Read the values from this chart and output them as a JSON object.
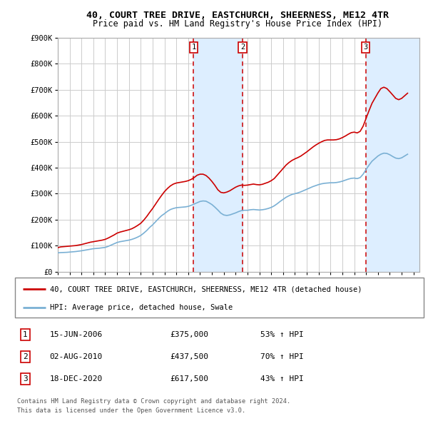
{
  "title": "40, COURT TREE DRIVE, EASTCHURCH, SHEERNESS, ME12 4TR",
  "subtitle": "Price paid vs. HM Land Registry's House Price Index (HPI)",
  "ylim": [
    0,
    900000
  ],
  "yticks": [
    0,
    100000,
    200000,
    300000,
    400000,
    500000,
    600000,
    700000,
    800000,
    900000
  ],
  "ytick_labels": [
    "£0",
    "£100K",
    "£200K",
    "£300K",
    "£400K",
    "£500K",
    "£600K",
    "£700K",
    "£800K",
    "£900K"
  ],
  "xlim_start": 1995.0,
  "xlim_end": 2025.5,
  "background_color": "#ffffff",
  "grid_color": "#cccccc",
  "plot_bg_color": "#ffffff",
  "red_line_color": "#cc0000",
  "blue_line_color": "#7ab0d4",
  "transaction_line_color": "#cc0000",
  "shade_color": "#ddeeff",
  "legend_label_red": "40, COURT TREE DRIVE, EASTCHURCH, SHEERNESS, ME12 4TR (detached house)",
  "legend_label_blue": "HPI: Average price, detached house, Swale",
  "transactions": [
    {
      "num": 1,
      "date": "15-JUN-2006",
      "price": "£375,000",
      "pct": "53% ↑ HPI",
      "x_year": 2006.46
    },
    {
      "num": 2,
      "date": "02-AUG-2010",
      "price": "£437,500",
      "pct": "70% ↑ HPI",
      "x_year": 2010.58
    },
    {
      "num": 3,
      "date": "18-DEC-2020",
      "price": "£617,500",
      "pct": "43% ↑ HPI",
      "x_year": 2020.96
    }
  ],
  "footer_line1": "Contains HM Land Registry data © Crown copyright and database right 2024.",
  "footer_line2": "This data is licensed under the Open Government Licence v3.0.",
  "hpi_data": {
    "years": [
      1995.0,
      1995.25,
      1995.5,
      1995.75,
      1996.0,
      1996.25,
      1996.5,
      1996.75,
      1997.0,
      1997.25,
      1997.5,
      1997.75,
      1998.0,
      1998.25,
      1998.5,
      1998.75,
      1999.0,
      1999.25,
      1999.5,
      1999.75,
      2000.0,
      2000.25,
      2000.5,
      2000.75,
      2001.0,
      2001.25,
      2001.5,
      2001.75,
      2002.0,
      2002.25,
      2002.5,
      2002.75,
      2003.0,
      2003.25,
      2003.5,
      2003.75,
      2004.0,
      2004.25,
      2004.5,
      2004.75,
      2005.0,
      2005.25,
      2005.5,
      2005.75,
      2006.0,
      2006.25,
      2006.5,
      2006.75,
      2007.0,
      2007.25,
      2007.5,
      2007.75,
      2008.0,
      2008.25,
      2008.5,
      2008.75,
      2009.0,
      2009.25,
      2009.5,
      2009.75,
      2010.0,
      2010.25,
      2010.5,
      2010.75,
      2011.0,
      2011.25,
      2011.5,
      2011.75,
      2012.0,
      2012.25,
      2012.5,
      2012.75,
      2013.0,
      2013.25,
      2013.5,
      2013.75,
      2014.0,
      2014.25,
      2014.5,
      2014.75,
      2015.0,
      2015.25,
      2015.5,
      2015.75,
      2016.0,
      2016.25,
      2016.5,
      2016.75,
      2017.0,
      2017.25,
      2017.5,
      2017.75,
      2018.0,
      2018.25,
      2018.5,
      2018.75,
      2019.0,
      2019.25,
      2019.5,
      2019.75,
      2020.0,
      2020.25,
      2020.5,
      2020.75,
      2021.0,
      2021.25,
      2021.5,
      2021.75,
      2022.0,
      2022.25,
      2022.5,
      2022.75,
      2023.0,
      2023.25,
      2023.5,
      2023.75,
      2024.0,
      2024.25,
      2024.5
    ],
    "values": [
      72000,
      73000,
      73500,
      74000,
      75000,
      76000,
      77000,
      78500,
      80000,
      82000,
      84000,
      86000,
      88000,
      89000,
      90000,
      91500,
      93000,
      97000,
      102000,
      107000,
      112000,
      115000,
      117000,
      119000,
      121000,
      124000,
      128000,
      133000,
      139000,
      148000,
      158000,
      170000,
      180000,
      192000,
      204000,
      215000,
      223000,
      232000,
      239000,
      243000,
      246000,
      247000,
      248000,
      249000,
      251000,
      255000,
      260000,
      265000,
      270000,
      272000,
      271000,
      265000,
      258000,
      248000,
      237000,
      225000,
      218000,
      216000,
      218000,
      222000,
      226000,
      231000,
      235000,
      236000,
      236000,
      238000,
      239000,
      238000,
      237000,
      238000,
      240000,
      243000,
      247000,
      253000,
      261000,
      270000,
      278000,
      286000,
      292000,
      297000,
      300000,
      303000,
      307000,
      312000,
      317000,
      322000,
      327000,
      331000,
      335000,
      338000,
      340000,
      341000,
      342000,
      342000,
      343000,
      345000,
      348000,
      352000,
      356000,
      359000,
      360000,
      358000,
      362000,
      375000,
      393000,
      410000,
      425000,
      435000,
      445000,
      452000,
      456000,
      455000,
      450000,
      443000,
      437000,
      435000,
      438000,
      445000,
      452000
    ]
  },
  "house_data": {
    "years": [
      1995.0,
      1995.25,
      1995.5,
      1995.75,
      1996.0,
      1996.25,
      1996.5,
      1996.75,
      1997.0,
      1997.25,
      1997.5,
      1997.75,
      1998.0,
      1998.25,
      1998.5,
      1998.75,
      1999.0,
      1999.25,
      1999.5,
      1999.75,
      2000.0,
      2000.25,
      2000.5,
      2000.75,
      2001.0,
      2001.25,
      2001.5,
      2001.75,
      2002.0,
      2002.25,
      2002.5,
      2002.75,
      2003.0,
      2003.25,
      2003.5,
      2003.75,
      2004.0,
      2004.25,
      2004.5,
      2004.75,
      2005.0,
      2005.25,
      2005.5,
      2005.75,
      2006.0,
      2006.25,
      2006.5,
      2006.75,
      2007.0,
      2007.25,
      2007.5,
      2007.75,
      2008.0,
      2008.25,
      2008.5,
      2008.75,
      2009.0,
      2009.25,
      2009.5,
      2009.75,
      2010.0,
      2010.25,
      2010.5,
      2010.75,
      2011.0,
      2011.25,
      2011.5,
      2011.75,
      2012.0,
      2012.25,
      2012.5,
      2012.75,
      2013.0,
      2013.25,
      2013.5,
      2013.75,
      2014.0,
      2014.25,
      2014.5,
      2014.75,
      2015.0,
      2015.25,
      2015.5,
      2015.75,
      2016.0,
      2016.25,
      2016.5,
      2016.75,
      2017.0,
      2017.25,
      2017.5,
      2017.75,
      2018.0,
      2018.25,
      2018.5,
      2018.75,
      2019.0,
      2019.25,
      2019.5,
      2019.75,
      2020.0,
      2020.25,
      2020.5,
      2020.75,
      2021.0,
      2021.25,
      2021.5,
      2021.75,
      2022.0,
      2022.25,
      2022.5,
      2022.75,
      2023.0,
      2023.25,
      2023.5,
      2023.75,
      2024.0,
      2024.25,
      2024.5
    ],
    "values": [
      92000,
      95000,
      96000,
      97000,
      98000,
      99000,
      100000,
      102000,
      104000,
      107000,
      110000,
      113000,
      115000,
      117000,
      119000,
      121000,
      124000,
      129000,
      135000,
      141000,
      148000,
      152000,
      155000,
      158000,
      161000,
      165000,
      171000,
      178000,
      186000,
      198000,
      212000,
      228000,
      243000,
      260000,
      277000,
      293000,
      308000,
      320000,
      330000,
      337000,
      341000,
      343000,
      345000,
      347000,
      350000,
      355000,
      362000,
      371000,
      375000,
      375000,
      370000,
      360000,
      347000,
      332000,
      315000,
      305000,
      303000,
      306000,
      311000,
      318000,
      325000,
      330000,
      333000,
      332000,
      333000,
      335000,
      337000,
      335000,
      334000,
      336000,
      340000,
      344000,
      350000,
      358000,
      371000,
      384000,
      397000,
      410000,
      420000,
      428000,
      434000,
      439000,
      445000,
      453000,
      461000,
      470000,
      479000,
      487000,
      494000,
      500000,
      505000,
      507000,
      507000,
      507000,
      508000,
      511000,
      516000,
      522000,
      529000,
      535000,
      537000,
      534000,
      540000,
      560000,
      590000,
      620000,
      648000,
      668000,
      688000,
      705000,
      710000,
      705000,
      693000,
      680000,
      667000,
      662000,
      667000,
      677000,
      687000
    ]
  }
}
